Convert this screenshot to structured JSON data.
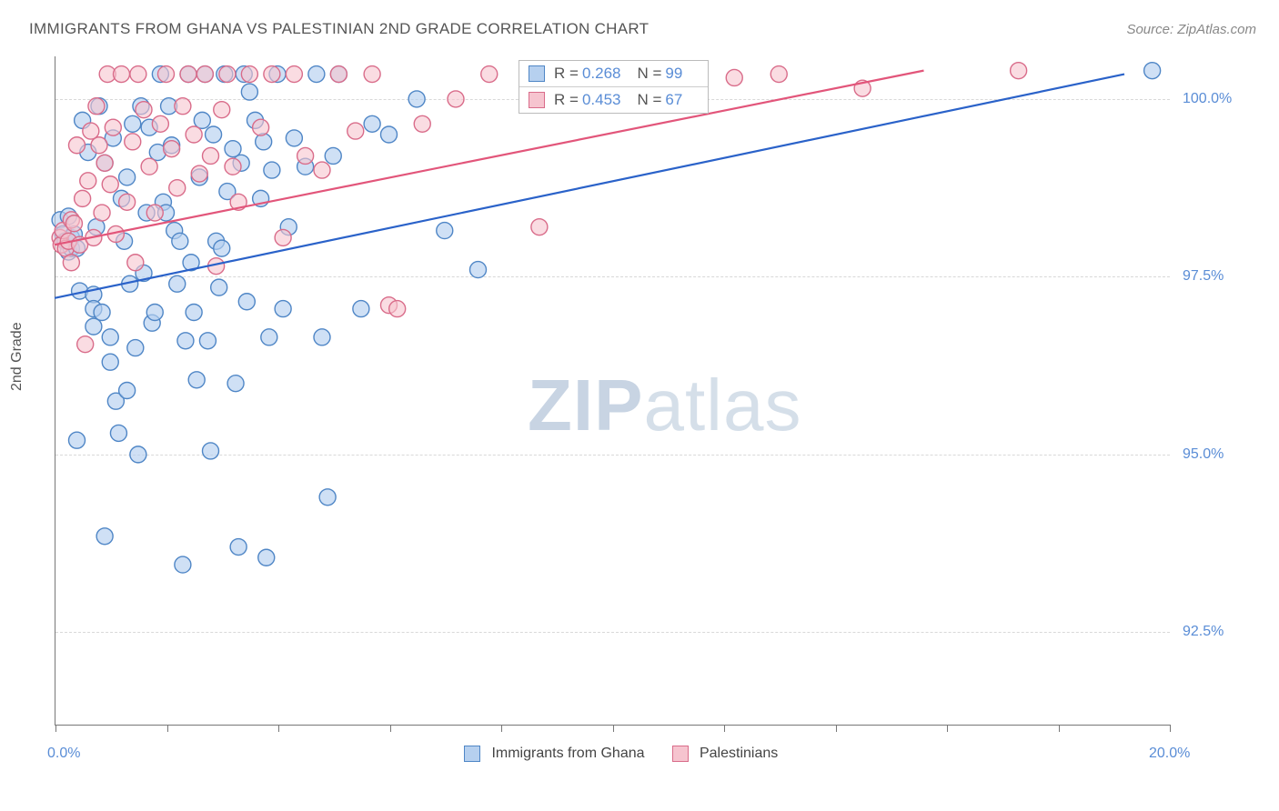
{
  "title": "IMMIGRANTS FROM GHANA VS PALESTINIAN 2ND GRADE CORRELATION CHART",
  "source": "Source: ZipAtlas.com",
  "y_axis_title": "2nd Grade",
  "watermark": {
    "part1": "ZIP",
    "part2": "atlas"
  },
  "chart": {
    "type": "scatter",
    "xlim": [
      0,
      20
    ],
    "ylim": [
      91.2,
      100.6
    ],
    "x_ticks": [
      0,
      2,
      4,
      6,
      8,
      10,
      12,
      14,
      16,
      18,
      20
    ],
    "x_tick_labels": {
      "0": "0.0%",
      "20": "20.0%"
    },
    "y_grid": [
      92.5,
      95.0,
      97.5,
      100.0
    ],
    "y_tick_labels": {
      "92.5": "92.5%",
      "95.0": "95.0%",
      "97.5": "97.5%",
      "100.0": "100.0%"
    },
    "marker_radius": 9,
    "marker_stroke_width": 1.4,
    "line_width": 2.2,
    "grid_color": "#d8d8d8",
    "axis_color": "#777777",
    "tick_label_color": "#5a8dd6",
    "axis_title_color": "#555555",
    "background_color": "#ffffff"
  },
  "series": [
    {
      "id": "ghana",
      "label": "Immigrants from Ghana",
      "fill": "#b6d0ef",
      "stroke": "#4f86c6",
      "fill_opacity": 0.65,
      "line_color": "#2a62c9",
      "R": "0.268",
      "N": "99",
      "regression": {
        "x1": 0,
        "y1": 97.2,
        "x2": 19.2,
        "y2": 100.35
      },
      "points": [
        [
          0.1,
          98.3
        ],
        [
          0.15,
          98.1
        ],
        [
          0.18,
          98.0
        ],
        [
          0.2,
          98.0
        ],
        [
          0.25,
          98.35
        ],
        [
          0.25,
          97.85
        ],
        [
          0.3,
          97.9
        ],
        [
          0.3,
          98.05
        ],
        [
          0.35,
          98.1
        ],
        [
          0.4,
          97.9
        ],
        [
          0.4,
          95.2
        ],
        [
          0.45,
          97.3
        ],
        [
          0.5,
          99.7
        ],
        [
          0.6,
          99.25
        ],
        [
          0.7,
          96.8
        ],
        [
          0.7,
          97.25
        ],
        [
          0.7,
          97.05
        ],
        [
          0.75,
          98.2
        ],
        [
          0.8,
          99.9
        ],
        [
          0.85,
          97.0
        ],
        [
          0.9,
          93.85
        ],
        [
          0.9,
          99.1
        ],
        [
          1.0,
          96.65
        ],
        [
          1.0,
          96.3
        ],
        [
          1.05,
          99.45
        ],
        [
          1.1,
          95.75
        ],
        [
          1.15,
          95.3
        ],
        [
          1.2,
          98.6
        ],
        [
          1.25,
          98.0
        ],
        [
          1.3,
          95.9
        ],
        [
          1.3,
          98.9
        ],
        [
          1.35,
          97.4
        ],
        [
          1.4,
          99.65
        ],
        [
          1.45,
          96.5
        ],
        [
          1.5,
          95.0
        ],
        [
          1.55,
          99.9
        ],
        [
          1.6,
          97.55
        ],
        [
          1.65,
          98.4
        ],
        [
          1.7,
          99.6
        ],
        [
          1.75,
          96.85
        ],
        [
          1.8,
          97.0
        ],
        [
          1.85,
          99.25
        ],
        [
          1.9,
          100.35
        ],
        [
          1.95,
          98.55
        ],
        [
          2.0,
          98.4
        ],
        [
          2.05,
          99.9
        ],
        [
          2.1,
          99.35
        ],
        [
          2.15,
          98.15
        ],
        [
          2.2,
          97.4
        ],
        [
          2.25,
          98.0
        ],
        [
          2.3,
          93.45
        ],
        [
          2.35,
          96.6
        ],
        [
          2.4,
          100.35
        ],
        [
          2.45,
          97.7
        ],
        [
          2.5,
          97.0
        ],
        [
          2.55,
          96.05
        ],
        [
          2.6,
          98.9
        ],
        [
          2.65,
          99.7
        ],
        [
          2.7,
          100.35
        ],
        [
          2.75,
          96.6
        ],
        [
          2.8,
          95.05
        ],
        [
          2.85,
          99.5
        ],
        [
          2.9,
          98.0
        ],
        [
          2.95,
          97.35
        ],
        [
          3.0,
          97.9
        ],
        [
          3.05,
          100.35
        ],
        [
          3.1,
          98.7
        ],
        [
          3.2,
          99.3
        ],
        [
          3.25,
          96.0
        ],
        [
          3.3,
          93.7
        ],
        [
          3.35,
          99.1
        ],
        [
          3.4,
          100.35
        ],
        [
          3.45,
          97.15
        ],
        [
          3.5,
          100.1
        ],
        [
          3.6,
          99.7
        ],
        [
          3.7,
          98.6
        ],
        [
          3.75,
          99.4
        ],
        [
          3.8,
          93.55
        ],
        [
          3.85,
          96.65
        ],
        [
          3.9,
          99.0
        ],
        [
          4.0,
          100.35
        ],
        [
          4.1,
          97.05
        ],
        [
          4.2,
          98.2
        ],
        [
          4.3,
          99.45
        ],
        [
          4.5,
          99.05
        ],
        [
          4.7,
          100.35
        ],
        [
          4.8,
          96.65
        ],
        [
          4.9,
          94.4
        ],
        [
          5.0,
          99.2
        ],
        [
          5.1,
          100.35
        ],
        [
          5.5,
          97.05
        ],
        [
          5.7,
          99.65
        ],
        [
          6.0,
          99.5
        ],
        [
          6.5,
          100.0
        ],
        [
          7.0,
          98.15
        ],
        [
          7.6,
          97.6
        ],
        [
          9.3,
          100.35
        ],
        [
          11.2,
          100.35
        ],
        [
          19.7,
          100.4
        ]
      ]
    },
    {
      "id": "palestinian",
      "label": "Palestinians",
      "fill": "#f6c4cf",
      "stroke": "#d96c8a",
      "fill_opacity": 0.6,
      "line_color": "#e2557a",
      "R": "0.453",
      "N": "67",
      "regression": {
        "x1": 0,
        "y1": 97.95,
        "x2": 15.6,
        "y2": 100.4
      },
      "points": [
        [
          0.1,
          98.05
        ],
        [
          0.12,
          97.95
        ],
        [
          0.15,
          98.15
        ],
        [
          0.2,
          97.9
        ],
        [
          0.25,
          98.0
        ],
        [
          0.3,
          98.3
        ],
        [
          0.3,
          97.7
        ],
        [
          0.35,
          98.25
        ],
        [
          0.4,
          99.35
        ],
        [
          0.45,
          97.95
        ],
        [
          0.5,
          98.6
        ],
        [
          0.55,
          96.55
        ],
        [
          0.6,
          98.85
        ],
        [
          0.65,
          99.55
        ],
        [
          0.7,
          98.05
        ],
        [
          0.75,
          99.9
        ],
        [
          0.8,
          99.35
        ],
        [
          0.85,
          98.4
        ],
        [
          0.9,
          99.1
        ],
        [
          0.95,
          100.35
        ],
        [
          1.0,
          98.8
        ],
        [
          1.05,
          99.6
        ],
        [
          1.1,
          98.1
        ],
        [
          1.2,
          100.35
        ],
        [
          1.3,
          98.55
        ],
        [
          1.4,
          99.4
        ],
        [
          1.45,
          97.7
        ],
        [
          1.5,
          100.35
        ],
        [
          1.6,
          99.85
        ],
        [
          1.7,
          99.05
        ],
        [
          1.8,
          98.4
        ],
        [
          1.9,
          99.65
        ],
        [
          2.0,
          100.35
        ],
        [
          2.1,
          99.3
        ],
        [
          2.2,
          98.75
        ],
        [
          2.3,
          99.9
        ],
        [
          2.4,
          100.35
        ],
        [
          2.5,
          99.5
        ],
        [
          2.6,
          98.95
        ],
        [
          2.7,
          100.35
        ],
        [
          2.8,
          99.2
        ],
        [
          2.9,
          97.65
        ],
        [
          3.0,
          99.85
        ],
        [
          3.1,
          100.35
        ],
        [
          3.2,
          99.05
        ],
        [
          3.3,
          98.55
        ],
        [
          3.5,
          100.35
        ],
        [
          3.7,
          99.6
        ],
        [
          3.9,
          100.35
        ],
        [
          4.1,
          98.05
        ],
        [
          4.3,
          100.35
        ],
        [
          4.5,
          99.2
        ],
        [
          4.8,
          99.0
        ],
        [
          5.1,
          100.35
        ],
        [
          5.4,
          99.55
        ],
        [
          5.7,
          100.35
        ],
        [
          6.0,
          97.1
        ],
        [
          6.15,
          97.05
        ],
        [
          6.6,
          99.65
        ],
        [
          7.2,
          100.0
        ],
        [
          7.8,
          100.35
        ],
        [
          8.7,
          98.2
        ],
        [
          10.0,
          100.35
        ],
        [
          12.2,
          100.3
        ],
        [
          13.0,
          100.35
        ],
        [
          14.5,
          100.15
        ],
        [
          17.3,
          100.4
        ]
      ]
    }
  ],
  "bottom_legend_labels": {
    "ghana": "Immigrants from Ghana",
    "palestinian": "Palestinians"
  },
  "inset_labels": {
    "R": "R =",
    "N": "N ="
  }
}
